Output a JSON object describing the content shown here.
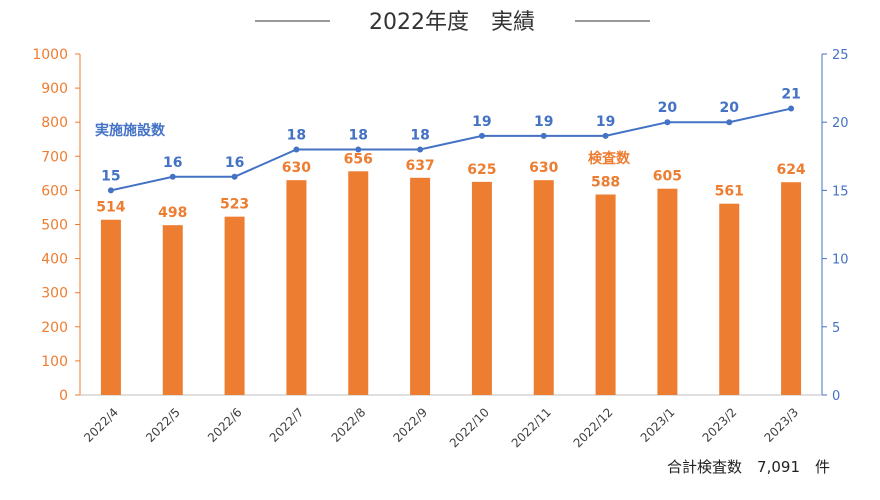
{
  "chart_data": {
    "type": "bar+line",
    "title": "2022年度　実績",
    "categories": [
      "2022/4",
      "2022/5",
      "2022/6",
      "2022/7",
      "2022/8",
      "2022/9",
      "2022/10",
      "2022/11",
      "2022/12",
      "2023/1",
      "2023/2",
      "2023/3"
    ],
    "series": [
      {
        "name": "検査数",
        "type": "bar",
        "axis": "left",
        "color": "#ED7D31",
        "values": [
          514,
          498,
          523,
          630,
          656,
          637,
          625,
          630,
          588,
          605,
          561,
          624
        ]
      },
      {
        "name": "実施施設数",
        "type": "line",
        "axis": "right",
        "color": "#4472C4",
        "values": [
          15,
          16,
          16,
          18,
          18,
          18,
          19,
          19,
          19,
          20,
          20,
          21
        ]
      }
    ],
    "left_axis": {
      "ylim": [
        0,
        1000
      ],
      "ticks": [
        "0",
        "100",
        "200",
        "300",
        "400",
        "500",
        "600",
        "700",
        "800",
        "900",
        "1000"
      ],
      "color": "#ED7D31"
    },
    "right_axis": {
      "ylim": [
        0,
        25
      ],
      "ticks": [
        "0",
        "5",
        "10",
        "15",
        "20",
        "25"
      ],
      "color": "#4472C4"
    },
    "grid": false,
    "legend": "inline labels",
    "footnote": "合計検査数　7,091　件"
  }
}
